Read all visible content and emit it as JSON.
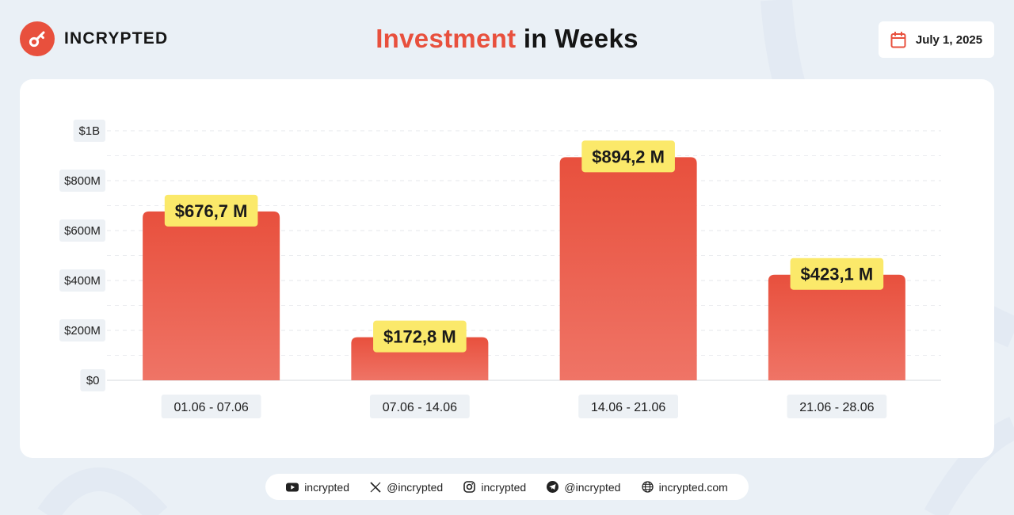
{
  "brand": {
    "name": "INCRYPTED",
    "logo_icon": "key-icon"
  },
  "header": {
    "title_accent": "Investment",
    "title_rest": " in Weeks",
    "date": "July 1, 2025",
    "date_icon": "calendar-icon"
  },
  "colors": {
    "accent": "#e8503d",
    "label_bg": "#fbe96a",
    "tick_bg": "#edf1f5"
  },
  "chart_data": {
    "type": "bar",
    "categories": [
      "01.06 - 07.06",
      "07.06 - 14.06",
      "14.06 - 21.06",
      "21.06 - 28.06"
    ],
    "values": [
      676.7,
      172.8,
      894.2,
      423.1
    ],
    "value_labels": [
      "$676,7 M",
      "$172,8 M",
      "$894,2 M",
      "$423,1 M"
    ],
    "unit": "M",
    "ylim": [
      0,
      1000
    ],
    "yticks": [
      0,
      200,
      400,
      600,
      800,
      1000
    ],
    "ytick_labels": [
      "$0",
      "$200M",
      "$400M",
      "$600M",
      "$800M",
      "$1B"
    ],
    "grid": true,
    "title": "",
    "xlabel": "",
    "ylabel": ""
  },
  "footer": {
    "items": [
      {
        "icon": "youtube-icon",
        "label": "incrypted"
      },
      {
        "icon": "x-icon",
        "label": "@incrypted"
      },
      {
        "icon": "instagram-icon",
        "label": "incrypted"
      },
      {
        "icon": "telegram-icon",
        "label": "@incrypted"
      },
      {
        "icon": "globe-icon",
        "label": "incrypted.com"
      }
    ]
  }
}
